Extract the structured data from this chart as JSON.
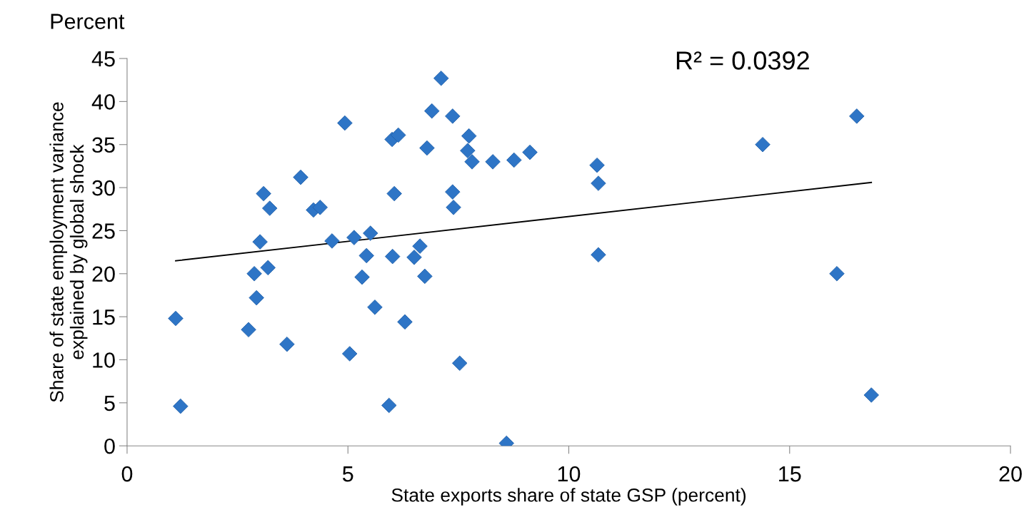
{
  "chart_data": {
    "type": "scatter",
    "xlabel": "State exports share of state GSP (percent)",
    "ylabel": "Share of state employment variance\nexplained by global shock",
    "annotations": [
      "Percent",
      "R² = 0.0392"
    ],
    "xlim": [
      0,
      20
    ],
    "xticks": [
      0,
      5,
      10,
      15,
      20
    ],
    "ylim": [
      0,
      45
    ],
    "yticks": [
      0,
      5,
      10,
      15,
      20,
      25,
      30,
      35,
      40,
      45
    ],
    "grid": false,
    "legend": false,
    "series": [
      {
        "color": "#2e75c6",
        "marker": "diamond",
        "x": [
          1.1,
          1.21,
          2.75,
          2.88,
          2.93,
          3.01,
          3.09,
          3.19,
          3.23,
          3.62,
          3.93,
          4.22,
          4.37,
          4.64,
          4.93,
          5.04,
          5.14,
          5.32,
          5.42,
          5.51,
          5.61,
          5.93,
          6.0,
          6.01,
          6.05,
          6.14,
          6.29,
          6.5,
          6.63,
          6.74,
          6.79,
          6.9,
          7.11,
          7.37,
          7.37,
          7.39,
          7.53,
          7.71,
          7.74,
          7.81,
          8.28,
          8.59,
          8.76,
          9.12,
          10.64,
          10.67,
          10.67,
          14.39,
          16.07,
          16.52,
          16.85
        ],
        "values": [
          14.8,
          4.6,
          13.5,
          20.0,
          17.2,
          23.7,
          29.3,
          20.7,
          27.6,
          11.8,
          31.2,
          27.4,
          27.7,
          23.8,
          37.5,
          10.7,
          24.2,
          19.6,
          22.1,
          24.7,
          16.1,
          4.7,
          35.6,
          22.0,
          29.3,
          36.1,
          14.4,
          21.9,
          23.2,
          19.7,
          34.6,
          38.9,
          42.7,
          38.3,
          29.5,
          27.7,
          9.6,
          34.3,
          36.0,
          33.0,
          33.0,
          0.3,
          33.2,
          34.1,
          32.6,
          30.5,
          22.2,
          35.0,
          20.0,
          38.3,
          5.9
        ]
      },
      {
        "type": "line",
        "color": "#000000",
        "marker": "none",
        "line_style": "solid",
        "x": [
          1.1,
          16.85
        ],
        "values": [
          21.5,
          30.6
        ]
      }
    ]
  }
}
